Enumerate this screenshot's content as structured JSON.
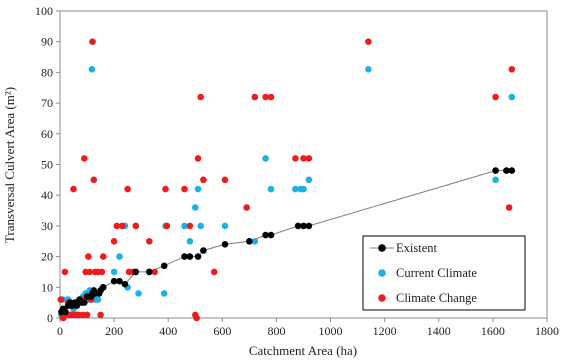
{
  "chart_data": {
    "type": "scatter",
    "xlabel": "Catchment Area (ha)",
    "ylabel": "Transversal Culvert Area (m²)",
    "xlim": [
      0,
      1800
    ],
    "ylim": [
      0,
      100
    ],
    "xticks": [
      0,
      200,
      400,
      600,
      800,
      1000,
      1200,
      1400,
      1600,
      1800
    ],
    "yticks": [
      0,
      10,
      20,
      30,
      40,
      50,
      60,
      70,
      80,
      90,
      100
    ],
    "grid": false,
    "legend_position": "bottom-right",
    "series": [
      {
        "name": "Existent",
        "style": "line-markers",
        "color": "#000000",
        "line_color": "#7f7f7f",
        "points": [
          [
            5,
            2
          ],
          [
            12,
            3
          ],
          [
            20,
            2
          ],
          [
            30,
            4
          ],
          [
            38,
            5
          ],
          [
            45,
            4
          ],
          [
            55,
            5
          ],
          [
            62,
            4
          ],
          [
            72,
            6
          ],
          [
            80,
            5
          ],
          [
            90,
            5
          ],
          [
            100,
            7
          ],
          [
            115,
            7
          ],
          [
            120,
            8
          ],
          [
            125,
            9
          ],
          [
            130,
            8
          ],
          [
            145,
            8
          ],
          [
            150,
            9
          ],
          [
            160,
            10
          ],
          [
            200,
            12
          ],
          [
            220,
            12
          ],
          [
            240,
            11
          ],
          [
            280,
            15
          ],
          [
            330,
            15
          ],
          [
            385,
            17
          ],
          [
            460,
            20
          ],
          [
            480,
            20
          ],
          [
            510,
            20
          ],
          [
            530,
            22
          ],
          [
            610,
            24
          ],
          [
            700,
            25
          ],
          [
            760,
            27
          ],
          [
            780,
            27
          ],
          [
            880,
            30
          ],
          [
            900,
            30
          ],
          [
            920,
            30
          ],
          [
            1610,
            48
          ],
          [
            1650,
            48
          ],
          [
            1670,
            48
          ]
        ]
      },
      {
        "name": "Current Climate",
        "style": "markers",
        "color": "#1ab1e6",
        "points": [
          [
            5,
            1
          ],
          [
            10,
            6
          ],
          [
            15,
            2
          ],
          [
            22,
            1
          ],
          [
            30,
            6
          ],
          [
            40,
            1
          ],
          [
            50,
            3
          ],
          [
            60,
            5
          ],
          [
            65,
            1
          ],
          [
            75,
            6
          ],
          [
            85,
            7
          ],
          [
            95,
            8
          ],
          [
            105,
            6
          ],
          [
            110,
            9
          ],
          [
            118,
            81
          ],
          [
            125,
            7
          ],
          [
            130,
            6
          ],
          [
            140,
            6
          ],
          [
            150,
            9
          ],
          [
            158,
            10
          ],
          [
            200,
            15
          ],
          [
            220,
            20
          ],
          [
            240,
            30
          ],
          [
            250,
            10
          ],
          [
            280,
            30
          ],
          [
            290,
            8
          ],
          [
            330,
            15
          ],
          [
            385,
            8
          ],
          [
            390,
            30
          ],
          [
            460,
            30
          ],
          [
            480,
            25
          ],
          [
            500,
            36
          ],
          [
            510,
            42
          ],
          [
            520,
            30
          ],
          [
            610,
            30
          ],
          [
            700,
            25
          ],
          [
            720,
            25
          ],
          [
            760,
            52
          ],
          [
            780,
            42
          ],
          [
            870,
            42
          ],
          [
            890,
            42
          ],
          [
            900,
            42
          ],
          [
            920,
            45
          ],
          [
            1140,
            81
          ],
          [
            1610,
            45
          ],
          [
            1650,
            20
          ],
          [
            1670,
            72
          ]
        ]
      },
      {
        "name": "Climate Change",
        "style": "markers",
        "color": "#ee1c1c",
        "points": [
          [
            3,
            6
          ],
          [
            8,
            1
          ],
          [
            12,
            0
          ],
          [
            18,
            15
          ],
          [
            25,
            1
          ],
          [
            30,
            5
          ],
          [
            35,
            1
          ],
          [
            45,
            1
          ],
          [
            50,
            42
          ],
          [
            55,
            1
          ],
          [
            62,
            1
          ],
          [
            70,
            1
          ],
          [
            80,
            6
          ],
          [
            85,
            1
          ],
          [
            90,
            52
          ],
          [
            95,
            15
          ],
          [
            100,
            1
          ],
          [
            105,
            20
          ],
          [
            110,
            15
          ],
          [
            115,
            6
          ],
          [
            120,
            90
          ],
          [
            125,
            45
          ],
          [
            130,
            15
          ],
          [
            140,
            15
          ],
          [
            150,
            1
          ],
          [
            155,
            15
          ],
          [
            160,
            20
          ],
          [
            200,
            25
          ],
          [
            210,
            30
          ],
          [
            230,
            30
          ],
          [
            250,
            42
          ],
          [
            255,
            15
          ],
          [
            270,
            15
          ],
          [
            280,
            30
          ],
          [
            330,
            25
          ],
          [
            350,
            15
          ],
          [
            390,
            42
          ],
          [
            395,
            30
          ],
          [
            460,
            42
          ],
          [
            480,
            30
          ],
          [
            500,
            1
          ],
          [
            505,
            0
          ],
          [
            510,
            52
          ],
          [
            520,
            72
          ],
          [
            530,
            45
          ],
          [
            570,
            15
          ],
          [
            610,
            45
          ],
          [
            690,
            36
          ],
          [
            720,
            72
          ],
          [
            760,
            72
          ],
          [
            780,
            72
          ],
          [
            870,
            52
          ],
          [
            900,
            52
          ],
          [
            920,
            52
          ],
          [
            1140,
            90
          ],
          [
            1610,
            72
          ],
          [
            1660,
            36
          ],
          [
            1670,
            81
          ]
        ]
      }
    ]
  }
}
